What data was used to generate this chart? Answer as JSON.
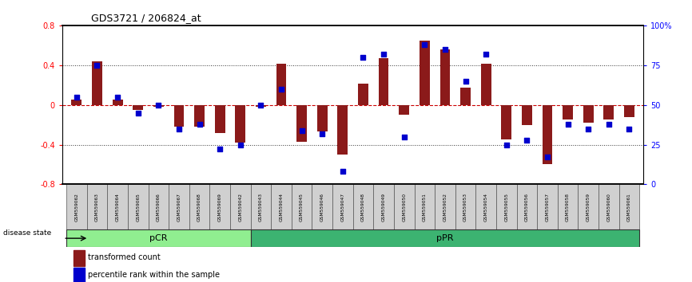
{
  "title": "GDS3721 / 206824_at",
  "samples": [
    "GSM559062",
    "GSM559063",
    "GSM559064",
    "GSM559065",
    "GSM559066",
    "GSM559067",
    "GSM559068",
    "GSM559069",
    "GSM559042",
    "GSM559043",
    "GSM559044",
    "GSM559045",
    "GSM559046",
    "GSM559047",
    "GSM559048",
    "GSM559049",
    "GSM559050",
    "GSM559051",
    "GSM559052",
    "GSM559053",
    "GSM559054",
    "GSM559055",
    "GSM559056",
    "GSM559057",
    "GSM559058",
    "GSM559059",
    "GSM559060",
    "GSM559061"
  ],
  "transformed_count": [
    0.05,
    0.44,
    0.05,
    -0.05,
    -0.02,
    -0.22,
    -0.22,
    -0.28,
    -0.38,
    -0.02,
    0.41,
    -0.37,
    -0.27,
    -0.5,
    0.21,
    0.47,
    -0.1,
    0.65,
    0.56,
    0.17,
    0.41,
    -0.35,
    -0.2,
    -0.6,
    -0.15,
    -0.18,
    -0.15,
    -0.12
  ],
  "percentile_rank": [
    55,
    75,
    55,
    45,
    50,
    35,
    38,
    22,
    25,
    50,
    60,
    34,
    32,
    8,
    80,
    82,
    30,
    88,
    85,
    65,
    82,
    25,
    28,
    17,
    38,
    35,
    38,
    35
  ],
  "pCR_count": 9,
  "pPR_count": 19,
  "bar_color": "#8B1A1A",
  "dot_color": "#0000CD",
  "pCR_fill": "#90EE90",
  "pPR_fill": "#3CB371",
  "bg_color": "#FFFFFF",
  "zero_line_color": "#CC0000",
  "dot_line_color": "#333333"
}
